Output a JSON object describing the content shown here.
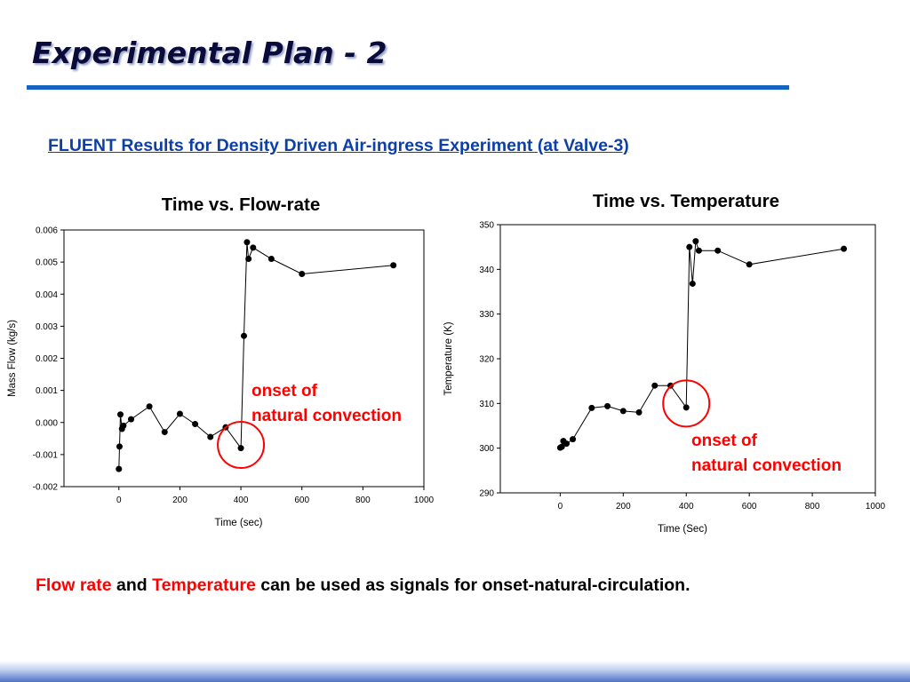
{
  "slide": {
    "title": "Experimental Plan - 2",
    "subtitle": "FLUENT Results for Density Driven Air-ingress Experiment (at Valve-3)",
    "conclusion": {
      "hl1": "Flow rate",
      "mid1": " and ",
      "hl2": "Temperature",
      "tail": " can be used as signals for onset-natural-circulation."
    }
  },
  "colors": {
    "accent": "#1565c0",
    "subtitle": "#0d3fa6",
    "annotation": "#ff0000",
    "series": "#000000"
  },
  "chart_data": [
    {
      "type": "line",
      "title": "Time vs. Flow-rate",
      "xlabel": "Time (sec)",
      "ylabel": "Mass Flow (kg/s)",
      "xlim": [
        -180,
        1000
      ],
      "ylim": [
        -0.002,
        0.006
      ],
      "xticks": [
        "0",
        "200",
        "400",
        "600",
        "800",
        "1000"
      ],
      "yticks": [
        "-0.002",
        "-0.001",
        "0.000",
        "0.001",
        "0.002",
        "0.003",
        "0.004",
        "0.005",
        "0.006"
      ],
      "grid": false,
      "series": [
        {
          "x": [
            0,
            2,
            5,
            10,
            15,
            40,
            100,
            150,
            200,
            250,
            300,
            350,
            400,
            410,
            420,
            425,
            440,
            500,
            600,
            900
          ],
          "y": [
            -0.00145,
            -0.00075,
            0.00025,
            -0.0002,
            -0.0001,
            0.0001,
            0.0005,
            -0.0003,
            0.00027,
            -5e-05,
            -0.00045,
            -0.00015,
            -0.0008,
            0.0027,
            0.00562,
            0.0051,
            0.00545,
            0.0051,
            0.00463,
            0.0049
          ]
        }
      ],
      "annotation": {
        "line1": "onset of",
        "line2": "natural convection",
        "x": 400,
        "y": -0.0007
      }
    },
    {
      "type": "line",
      "title": "Time vs. Temperature",
      "xlabel": "Time (Sec)",
      "ylabel": "Temperature (K)",
      "xlim": [
        -190,
        1000
      ],
      "ylim": [
        290,
        350
      ],
      "xticks": [
        "0",
        "200",
        "400",
        "600",
        "800",
        "1000"
      ],
      "yticks": [
        "290",
        "300",
        "310",
        "320",
        "330",
        "340",
        "350"
      ],
      "grid": false,
      "series": [
        {
          "x": [
            0,
            5,
            10,
            20,
            40,
            100,
            150,
            200,
            250,
            300,
            350,
            400,
            410,
            420,
            430,
            440,
            500,
            600,
            900
          ],
          "y": [
            300.1,
            300.3,
            301.6,
            301.0,
            302.0,
            309.0,
            309.4,
            308.3,
            308.0,
            314.0,
            314.0,
            309.1,
            345.0,
            336.8,
            346.3,
            344.2,
            344.2,
            341.1,
            344.6
          ]
        }
      ],
      "annotation": {
        "line1": "onset of",
        "line2": "natural convection",
        "x": 400,
        "y": 310
      }
    }
  ]
}
